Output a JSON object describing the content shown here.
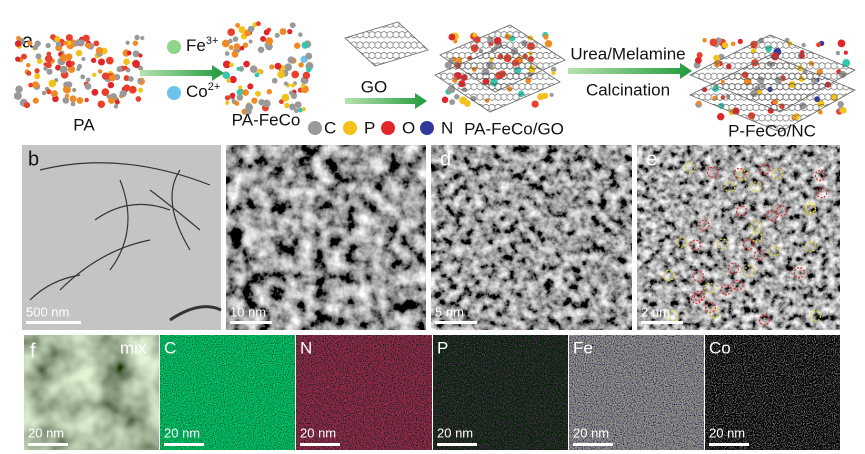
{
  "scheme": {
    "label": "a",
    "ions": [
      {
        "symbol": "Fe",
        "charge": "3+"
      },
      {
        "symbol": "Co",
        "charge": "2+"
      }
    ],
    "reagent": "GO",
    "conditions": [
      "Urea/Melamine",
      "Calcination"
    ],
    "compounds": [
      "PA",
      "PA-FeCo",
      "PA-FeCo/GO",
      "P-FeCo/NC"
    ],
    "legend": [
      "C",
      "P",
      "O",
      "N"
    ]
  },
  "micrographs": [
    {
      "label": "b",
      "scale_bar": "500 nm"
    },
    {
      "scale_bar": "10 nm"
    },
    {
      "label": "d",
      "scale_bar": "5 nm"
    },
    {
      "label": "e",
      "scale_bar": "2 nm"
    }
  ],
  "maps": {
    "label": "f",
    "panels": [
      {
        "element": "mix",
        "scale_bar": "20 nm"
      },
      {
        "element": "C",
        "scale_bar": "20 nm"
      },
      {
        "element": "N",
        "scale_bar": "20 nm"
      },
      {
        "element": "P",
        "scale_bar": "20 nm"
      },
      {
        "element": "Fe",
        "scale_bar": "20 nm"
      },
      {
        "element": "Co",
        "scale_bar": "20 nm"
      }
    ]
  }
}
